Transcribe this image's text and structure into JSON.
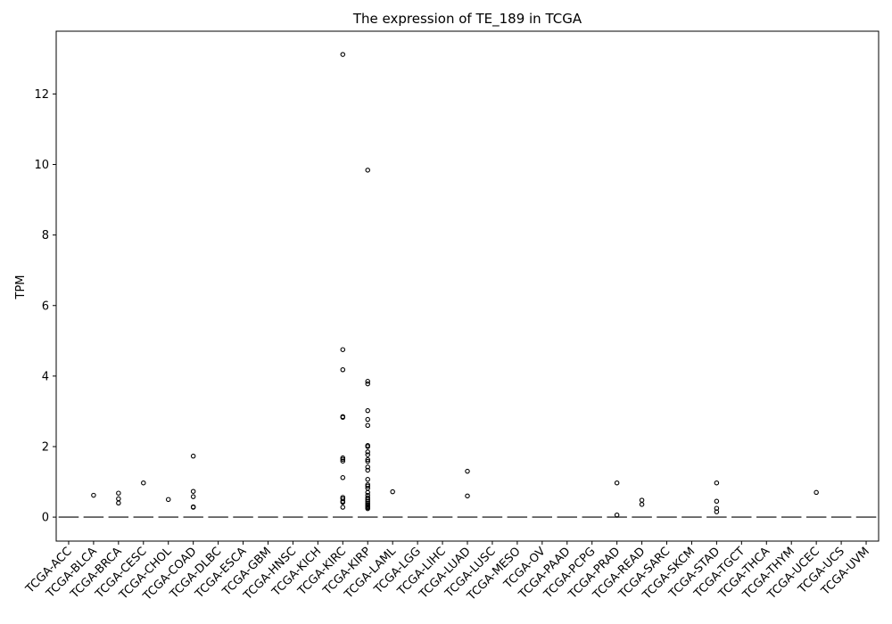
{
  "chart_data": {
    "type": "box",
    "title": "The expression of TE_189 in TCGA",
    "xlabel": "",
    "ylabel": "TPM",
    "ylim": [
      -0.68,
      13.78
    ],
    "yticks": [
      0,
      2,
      4,
      6,
      8,
      10,
      12
    ],
    "grid": false,
    "legend": "none",
    "colors": {
      "box": "#000000",
      "median": "#555555",
      "outlier": "#000000"
    },
    "categories": [
      "TCGA-ACC",
      "TCGA-BLCA",
      "TCGA-BRCA",
      "TCGA-CESC",
      "TCGA-CHOL",
      "TCGA-COAD",
      "TCGA-DLBC",
      "TCGA-ESCA",
      "TCGA-GBM",
      "TCGA-HNSC",
      "TCGA-KICH",
      "TCGA-KIRC",
      "TCGA-KIRP",
      "TCGA-LAML",
      "TCGA-LGG",
      "TCGA-LIHC",
      "TCGA-LUAD",
      "TCGA-LUSC",
      "TCGA-MESO",
      "TCGA-OV",
      "TCGA-PAAD",
      "TCGA-PCPG",
      "TCGA-PRAD",
      "TCGA-READ",
      "TCGA-SARC",
      "TCGA-SKCM",
      "TCGA-STAD",
      "TCGA-TGCT",
      "TCGA-THCA",
      "TCGA-THYM",
      "TCGA-UCEC",
      "TCGA-UCS",
      "TCGA-UVM"
    ],
    "medians": [
      0,
      0,
      0,
      0,
      0,
      0,
      0,
      0,
      0,
      0,
      0,
      0,
      0,
      0,
      0,
      0,
      0,
      0,
      0,
      0,
      0,
      0,
      0,
      0,
      0,
      0,
      0,
      0,
      0,
      0,
      0,
      0,
      0
    ],
    "outliers": [
      [],
      [
        0.62
      ],
      [
        0.68,
        0.52,
        0.4
      ],
      [
        0.97
      ],
      [
        0.5
      ],
      [
        1.73,
        0.73,
        0.58,
        0.29,
        0.28
      ],
      [],
      [],
      [],
      [],
      [],
      [
        13.12,
        4.75,
        4.18,
        2.85,
        2.83,
        1.68,
        1.64,
        1.59,
        1.12,
        0.56,
        0.52,
        0.45,
        0.42,
        0.28
      ],
      [
        9.84,
        3.85,
        3.78,
        3.02,
        2.77,
        2.6,
        2.03,
        2.0,
        1.85,
        1.77,
        1.63,
        1.58,
        1.42,
        1.33,
        1.07,
        0.92,
        0.88,
        0.82,
        0.7,
        0.62,
        0.55,
        0.5,
        0.45,
        0.4,
        0.36,
        0.33,
        0.3,
        0.27,
        0.24
      ],
      [
        0.72
      ],
      [],
      [],
      [
        1.3,
        0.6
      ],
      [],
      [],
      [],
      [],
      [],
      [
        0.97,
        0.06
      ],
      [
        0.48,
        0.36
      ],
      [],
      [],
      [
        0.97,
        0.45,
        0.25,
        0.15
      ],
      [],
      [],
      [],
      [
        0.7
      ],
      [],
      []
    ]
  }
}
